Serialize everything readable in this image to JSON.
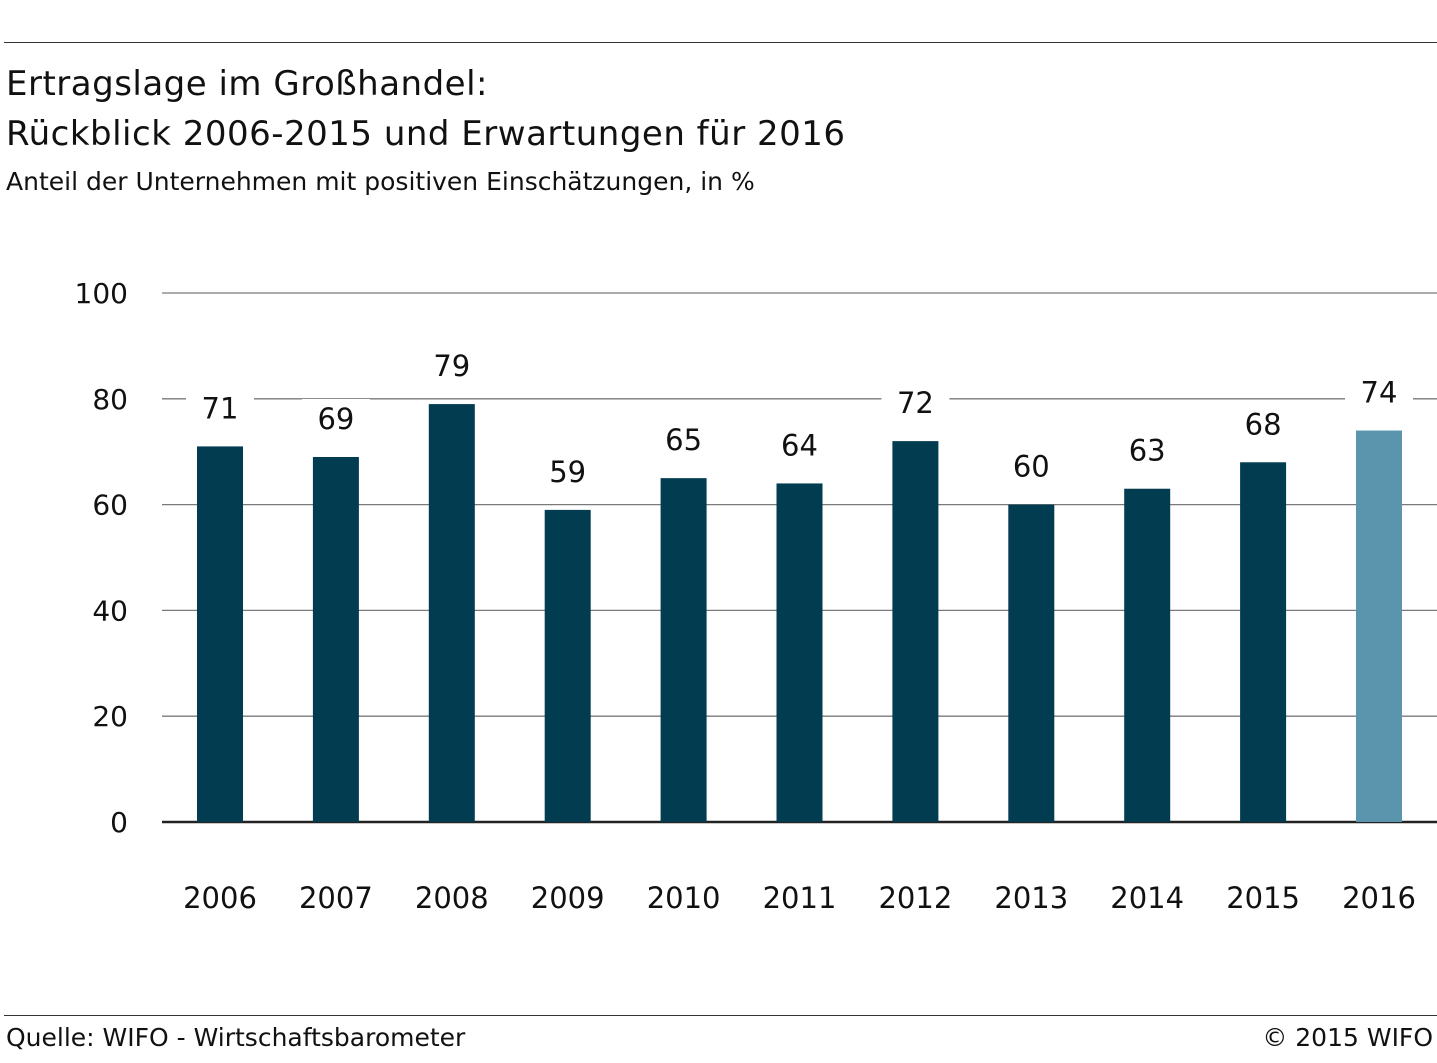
{
  "header": {
    "title_line1": "Ertragslage im Großhandel:",
    "title_line2": "Rückblick 2006-2015 und Erwartungen für 2016",
    "subtitle": "Anteil der Unternehmen mit positiven Einschätzungen, in %"
  },
  "footer": {
    "source": "Quelle: WIFO - Wirtschaftsbarometer",
    "copyright": "© 2015 WIFO"
  },
  "chart_data": {
    "type": "bar",
    "categories": [
      "2006",
      "2007",
      "2008",
      "2009",
      "2010",
      "2011",
      "2012",
      "2013",
      "2014",
      "2015",
      "2016"
    ],
    "values": [
      71,
      69,
      79,
      59,
      65,
      64,
      72,
      60,
      63,
      68,
      74
    ],
    "ylim": [
      0,
      100
    ],
    "yticks": [
      0,
      20,
      40,
      60,
      80,
      100
    ],
    "grid": true,
    "colors": {
      "actual": "#023c50",
      "expected": "#5a94ad",
      "grid": "#7a7a7a",
      "axis": "#222222"
    },
    "highlight_index": 10
  }
}
